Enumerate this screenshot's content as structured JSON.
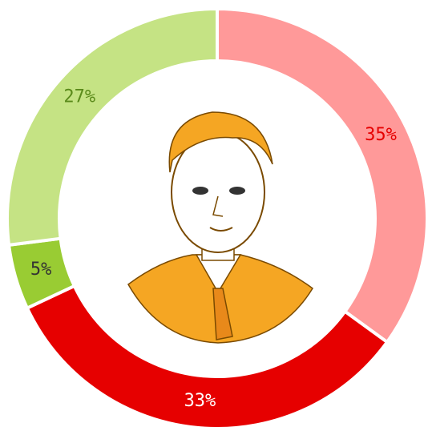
{
  "chart_data": {
    "type": "donut",
    "values": [
      35,
      33,
      5,
      27
    ],
    "value_labels": [
      "35%",
      "33%",
      "5%",
      "27%"
    ],
    "colors": [
      "#ff9999",
      "#e60000",
      "#99cc33",
      "#c5e384"
    ],
    "label_colors": [
      "#e60000",
      "#ffffff",
      "#333333",
      "#5a8a1a"
    ]
  }
}
